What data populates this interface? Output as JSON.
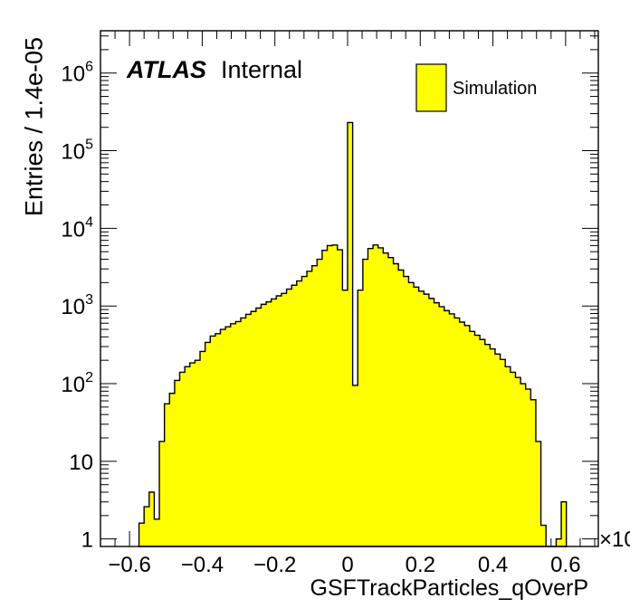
{
  "chart_data": {
    "type": "histogram",
    "xlabel": "GSFTrackParticles_qOverP",
    "ylabel": "Entries / 1.4e-05",
    "x_multiplier": "×10",
    "xlim": [
      -0.68,
      0.69
    ],
    "ylim": [
      0.8,
      3500000
    ],
    "y_scale": "log",
    "fill_color": "#ffff00",
    "edge_color": "#000000",
    "x_ticks": [
      "−0.6",
      "−0.4",
      "−0.2",
      "0",
      "0.2",
      "0.4",
      "0.6"
    ],
    "x_tick_values": [
      -0.6,
      -0.4,
      -0.2,
      0,
      0.2,
      0.4,
      0.6
    ],
    "y_ticks": [
      {
        "base": "1",
        "exp": ""
      },
      {
        "base": "10",
        "exp": ""
      },
      {
        "base": "10",
        "exp": "2"
      },
      {
        "base": "10",
        "exp": "3"
      },
      {
        "base": "10",
        "exp": "4"
      },
      {
        "base": "10",
        "exp": "5"
      },
      {
        "base": "10",
        "exp": "6"
      }
    ],
    "y_tick_values": [
      1,
      10,
      100,
      1000,
      10000,
      100000,
      1000000
    ],
    "bin_width": 0.014,
    "bins": [
      [
        -0.567,
        1.6
      ],
      [
        -0.553,
        2.6
      ],
      [
        -0.539,
        4.0
      ],
      [
        -0.525,
        1.8
      ],
      [
        -0.511,
        18
      ],
      [
        -0.497,
        55
      ],
      [
        -0.483,
        75
      ],
      [
        -0.469,
        110
      ],
      [
        -0.455,
        140
      ],
      [
        -0.441,
        165
      ],
      [
        -0.427,
        185
      ],
      [
        -0.413,
        200
      ],
      [
        -0.399,
        260
      ],
      [
        -0.385,
        340
      ],
      [
        -0.371,
        410
      ],
      [
        -0.357,
        440
      ],
      [
        -0.343,
        500
      ],
      [
        -0.329,
        540
      ],
      [
        -0.315,
        590
      ],
      [
        -0.301,
        630
      ],
      [
        -0.287,
        700
      ],
      [
        -0.273,
        780
      ],
      [
        -0.259,
        850
      ],
      [
        -0.245,
        940
      ],
      [
        -0.231,
        1050
      ],
      [
        -0.217,
        1130
      ],
      [
        -0.203,
        1230
      ],
      [
        -0.189,
        1350
      ],
      [
        -0.175,
        1450
      ],
      [
        -0.161,
        1650
      ],
      [
        -0.147,
        1850
      ],
      [
        -0.133,
        2100
      ],
      [
        -0.119,
        2400
      ],
      [
        -0.105,
        2800
      ],
      [
        -0.091,
        3300
      ],
      [
        -0.077,
        4000
      ],
      [
        -0.063,
        5200
      ],
      [
        -0.049,
        6000
      ],
      [
        -0.035,
        6100
      ],
      [
        -0.021,
        5300
      ],
      [
        -0.007,
        1600
      ],
      [
        0.007,
        230000
      ],
      [
        0.021,
        95
      ],
      [
        0.035,
        1600
      ],
      [
        0.049,
        4000
      ],
      [
        0.063,
        5500
      ],
      [
        0.077,
        6100
      ],
      [
        0.091,
        5600
      ],
      [
        0.105,
        4800
      ],
      [
        0.119,
        4200
      ],
      [
        0.133,
        3500
      ],
      [
        0.147,
        2900
      ],
      [
        0.161,
        2400
      ],
      [
        0.175,
        2000
      ],
      [
        0.189,
        1750
      ],
      [
        0.203,
        1550
      ],
      [
        0.217,
        1420
      ],
      [
        0.231,
        1250
      ],
      [
        0.245,
        1100
      ],
      [
        0.259,
        980
      ],
      [
        0.273,
        870
      ],
      [
        0.287,
        790
      ],
      [
        0.301,
        700
      ],
      [
        0.315,
        620
      ],
      [
        0.329,
        560
      ],
      [
        0.343,
        470
      ],
      [
        0.357,
        420
      ],
      [
        0.371,
        370
      ],
      [
        0.385,
        320
      ],
      [
        0.399,
        280
      ],
      [
        0.413,
        240
      ],
      [
        0.427,
        205
      ],
      [
        0.441,
        165
      ],
      [
        0.455,
        140
      ],
      [
        0.469,
        120
      ],
      [
        0.483,
        100
      ],
      [
        0.497,
        85
      ],
      [
        0.511,
        62
      ],
      [
        0.525,
        18
      ],
      [
        0.539,
        1.5
      ],
      [
        0.553,
        0.5
      ],
      [
        0.567,
        0.5
      ],
      [
        0.581,
        1.0
      ],
      [
        0.595,
        3.0
      ]
    ]
  },
  "labels": {
    "atlas": "ATLAS",
    "internal": "Internal",
    "legend": "Simulation"
  }
}
